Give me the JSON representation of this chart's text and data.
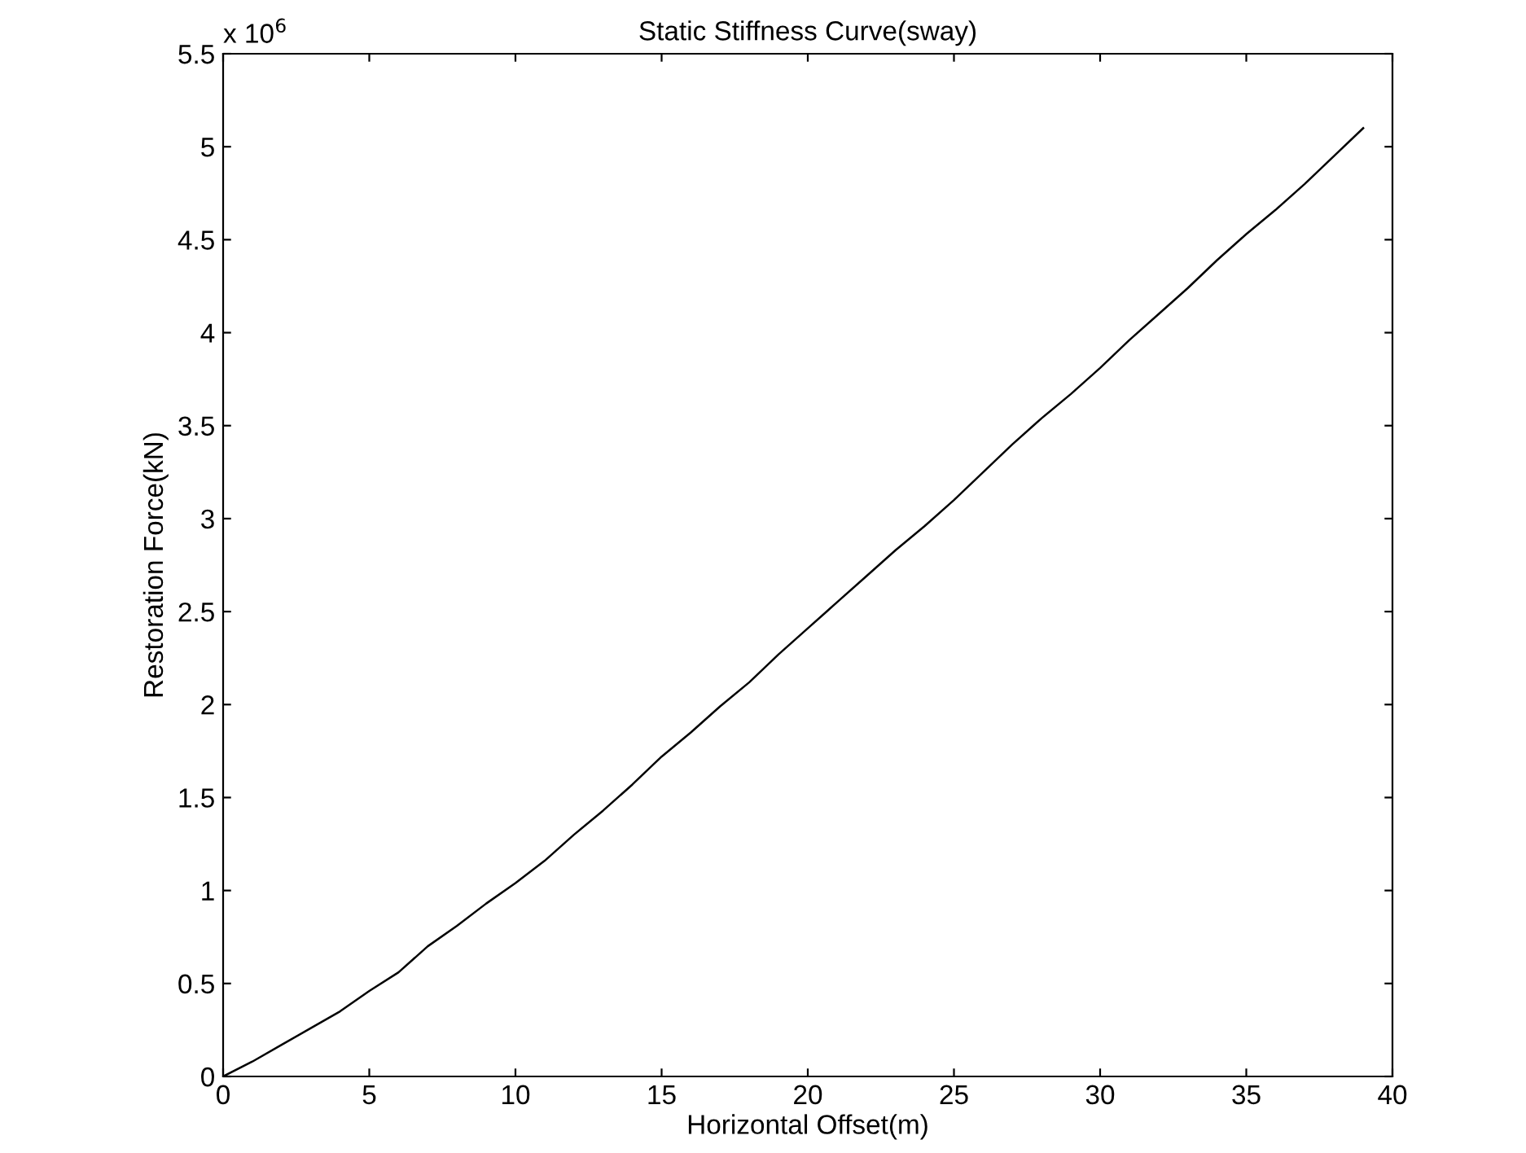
{
  "chart_data": {
    "type": "line",
    "title": "Static Stiffness Curve(sway)",
    "xlabel": "Horizontal Offset(m)",
    "ylabel": "Restoration Force(kN)",
    "annotations": [
      "x 10$^{6}$"
    ],
    "x": [
      0,
      1,
      2,
      3,
      4,
      5,
      6,
      7,
      8,
      9,
      10,
      11,
      12,
      13,
      14,
      15,
      16,
      17,
      18,
      19,
      20,
      21,
      22,
      23,
      24,
      25,
      26,
      27,
      28,
      29,
      30,
      31,
      32,
      33,
      34,
      35,
      36,
      37,
      38,
      39
    ],
    "series": [
      {
        "color": "#000000",
        "values": [
          0,
          0.08,
          0.17,
          0.26,
          0.35,
          0.46,
          0.56,
          0.7,
          0.81,
          0.93,
          1.04,
          1.16,
          1.3,
          1.43,
          1.57,
          1.72,
          1.85,
          1.99,
          2.12,
          2.27,
          2.41,
          2.55,
          2.69,
          2.83,
          2.96,
          3.1,
          3.25,
          3.4,
          3.54,
          3.67,
          3.81,
          3.96,
          4.1,
          4.24,
          4.39,
          4.53,
          4.66,
          4.8,
          4.95,
          5.1
        ]
      }
    ],
    "xlim": [
      0,
      40
    ],
    "xticks": [
      0,
      5,
      10,
      15,
      20,
      25,
      30,
      35,
      40
    ],
    "ylim": [
      0,
      5.5
    ],
    "yticks": [
      0,
      0.5,
      1,
      1.5,
      2,
      2.5,
      3,
      3.5,
      4,
      4.5,
      5,
      5.5
    ],
    "grid": false,
    "legend": false,
    "marker": "none",
    "line_style": "solid"
  }
}
